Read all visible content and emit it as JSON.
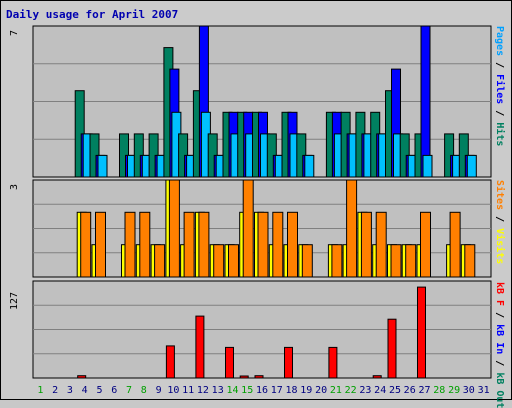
{
  "title": "Daily usage for April 2007",
  "right_labels": {
    "panel1": [
      {
        "text": "Pages",
        "color": "#00a0ff"
      },
      {
        "text": " / ",
        "color": "#000000"
      },
      {
        "text": "Files",
        "color": "#0000ff"
      },
      {
        "text": " / ",
        "color": "#000000"
      },
      {
        "text": "Hits",
        "color": "#008060"
      }
    ],
    "panel2": [
      {
        "text": "Sites",
        "color": "#ff8000"
      },
      {
        "text": " / ",
        "color": "#000000"
      },
      {
        "text": "Visits",
        "color": "#ffff00"
      }
    ],
    "panel3": [
      {
        "text": "kB F",
        "color": "#ff0000"
      },
      {
        "text": " / ",
        "color": "#000000"
      },
      {
        "text": "kB In",
        "color": "#0000ff"
      },
      {
        "text": " / ",
        "color": "#000000"
      },
      {
        "text": "kB Out",
        "color": "#008060"
      }
    ]
  },
  "colors": {
    "hits": "#008060",
    "files": "#0000ff",
    "pages": "#00c0ff",
    "visits": "#ffff00",
    "sites": "#ff8000",
    "kbf": "#ff0000",
    "weekend_day": "#00a000",
    "weekday": "#000080",
    "title": "#0000b0"
  },
  "chart_data": [
    {
      "type": "bar",
      "ymax_label": "7",
      "ylim": [
        0,
        7
      ],
      "days": [
        1,
        2,
        3,
        4,
        5,
        6,
        7,
        8,
        9,
        10,
        11,
        12,
        13,
        14,
        15,
        16,
        17,
        18,
        19,
        20,
        21,
        22,
        23,
        24,
        25,
        26,
        27,
        28,
        29,
        30,
        31
      ],
      "series": [
        {
          "name": "Hits",
          "values": [
            0,
            0,
            0,
            4,
            2,
            0,
            2,
            2,
            2,
            6,
            2,
            4,
            2,
            3,
            3,
            3,
            2,
            3,
            2,
            0,
            3,
            3,
            3,
            3,
            4,
            2,
            2,
            0,
            2,
            2,
            0
          ]
        },
        {
          "name": "Files",
          "values": [
            0,
            0,
            0,
            2,
            1,
            0,
            1,
            1,
            1,
            5,
            1,
            7,
            1,
            3,
            3,
            3,
            1,
            3,
            1,
            0,
            3,
            2,
            2,
            2,
            5,
            1,
            7,
            0,
            1,
            1,
            0
          ]
        },
        {
          "name": "Pages",
          "values": [
            0,
            0,
            0,
            2,
            1,
            0,
            1,
            1,
            1,
            3,
            1,
            3,
            1,
            2,
            2,
            2,
            1,
            2,
            1,
            0,
            2,
            2,
            2,
            2,
            2,
            1,
            1,
            0,
            1,
            1,
            0
          ]
        }
      ]
    },
    {
      "type": "bar",
      "ymax_label": "3",
      "ylim": [
        0,
        3
      ],
      "days": [
        1,
        2,
        3,
        4,
        5,
        6,
        7,
        8,
        9,
        10,
        11,
        12,
        13,
        14,
        15,
        16,
        17,
        18,
        19,
        20,
        21,
        22,
        23,
        24,
        25,
        26,
        27,
        28,
        29,
        30,
        31
      ],
      "series": [
        {
          "name": "Visits",
          "values": [
            0,
            0,
            0,
            2,
            1,
            0,
            1,
            1,
            1,
            3,
            1,
            2,
            1,
            1,
            2,
            2,
            1,
            1,
            1,
            0,
            1,
            1,
            2,
            1,
            1,
            1,
            1,
            0,
            1,
            1,
            0
          ]
        },
        {
          "name": "Sites",
          "values": [
            0,
            0,
            0,
            2,
            2,
            0,
            2,
            2,
            1,
            3,
            2,
            2,
            1,
            1,
            3,
            2,
            2,
            2,
            1,
            0,
            1,
            3,
            2,
            2,
            1,
            1,
            2,
            0,
            2,
            1,
            0
          ]
        }
      ]
    },
    {
      "type": "bar",
      "ymax_label": "127",
      "ylim": [
        0,
        127
      ],
      "days": [
        1,
        2,
        3,
        4,
        5,
        6,
        7,
        8,
        9,
        10,
        11,
        12,
        13,
        14,
        15,
        16,
        17,
        18,
        19,
        20,
        21,
        22,
        23,
        24,
        25,
        26,
        27,
        28,
        29,
        30,
        31
      ],
      "series": [
        {
          "name": "kB F",
          "values": [
            0,
            0,
            0,
            3,
            0,
            0,
            0,
            0,
            0,
            42,
            0,
            81,
            0,
            40,
            2,
            3,
            0,
            40,
            0,
            0,
            40,
            0,
            0,
            3,
            77,
            0,
            119,
            0,
            0,
            0,
            0
          ]
        },
        {
          "name": "kB In",
          "values": [
            0,
            0,
            0,
            0,
            0,
            0,
            0,
            0,
            0,
            0,
            0,
            0,
            0,
            0,
            0,
            0,
            0,
            0,
            0,
            0,
            0,
            0,
            0,
            0,
            0,
            0,
            0,
            0,
            0,
            0,
            0
          ]
        },
        {
          "name": "kB Out",
          "values": [
            0,
            0,
            0,
            0,
            0,
            0,
            0,
            0,
            0,
            0,
            0,
            0,
            0,
            0,
            0,
            0,
            0,
            0,
            0,
            0,
            0,
            0,
            0,
            0,
            0,
            0,
            0,
            0,
            0,
            0,
            0
          ]
        }
      ]
    }
  ],
  "weekend_days": [
    1,
    7,
    8,
    14,
    15,
    21,
    22,
    28,
    29
  ]
}
